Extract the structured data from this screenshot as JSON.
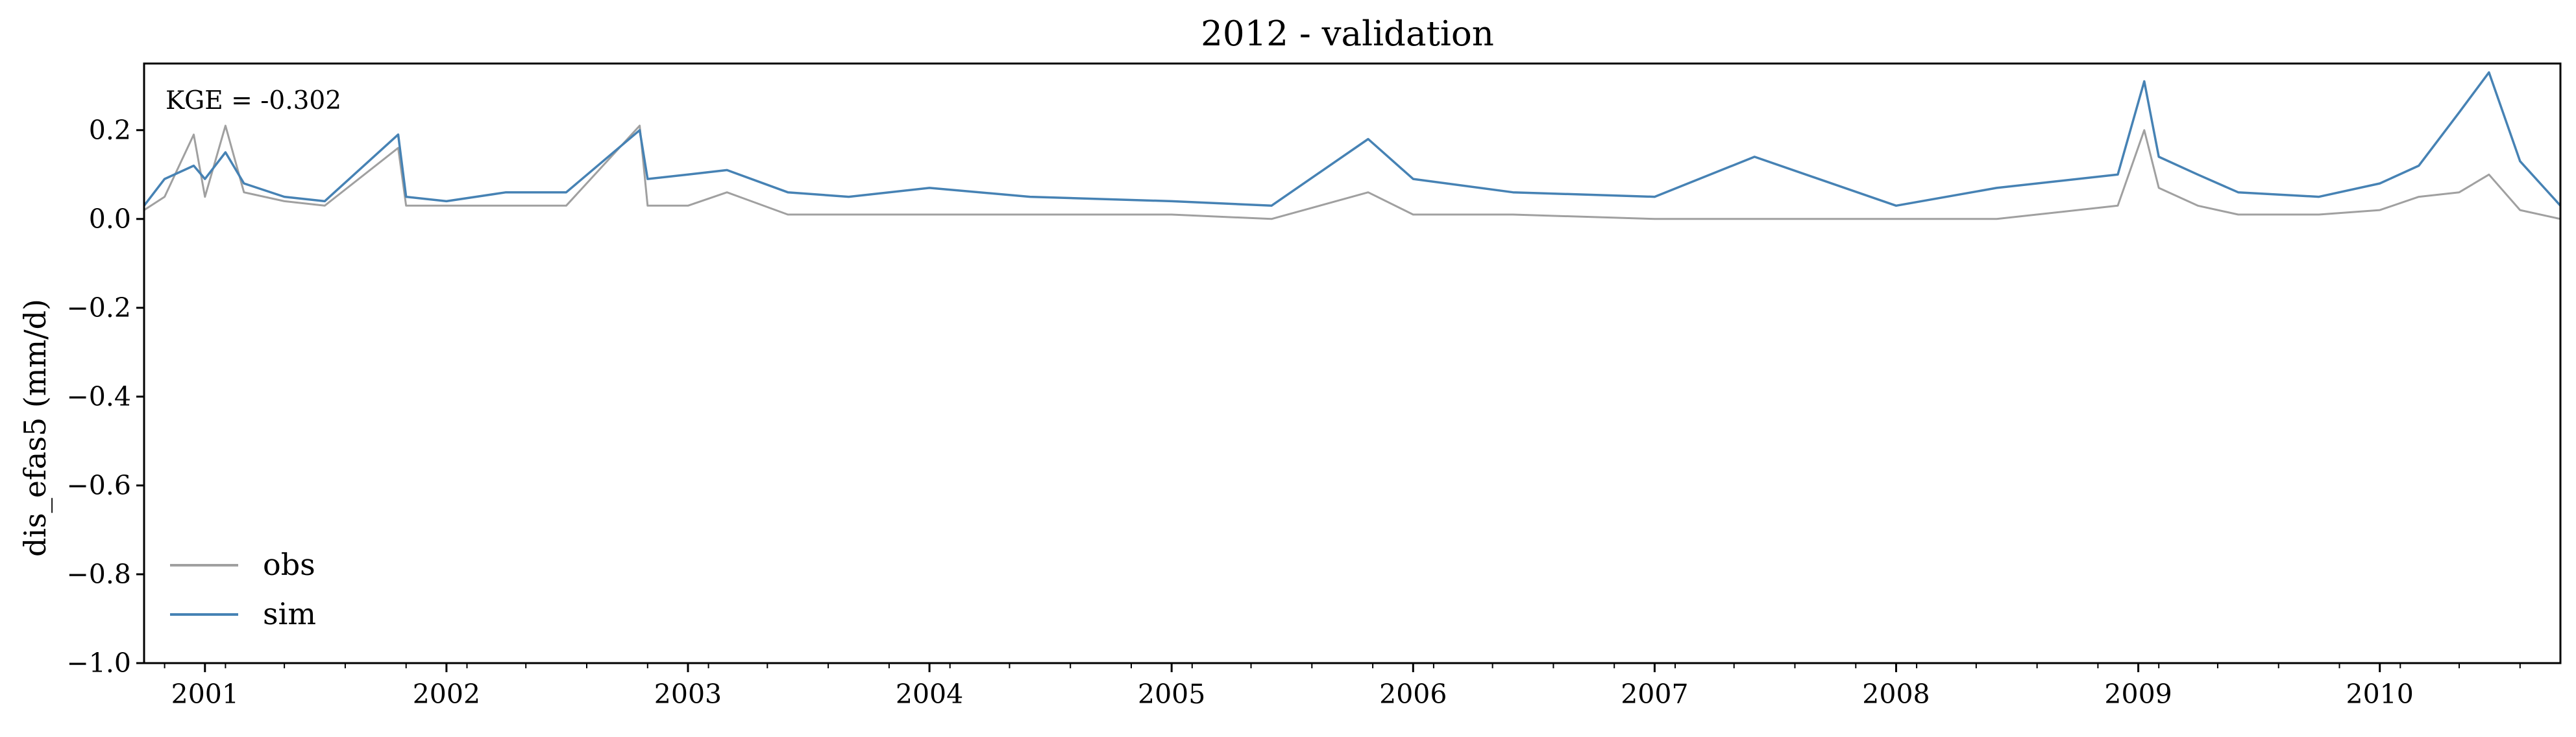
{
  "chart_data": {
    "type": "line",
    "title": "2012 - validation",
    "xlabel": "",
    "ylabel": "dis_efas5 (mm/d)",
    "annotation": "KGE = -0.302",
    "ylim": [
      -1.0,
      0.35
    ],
    "xlim": [
      "2000-10-01",
      "2010-10-01"
    ],
    "yticks": [
      0.2,
      0.0,
      -0.2,
      -0.4,
      -0.6,
      -0.8,
      -1.0
    ],
    "ytick_labels": [
      "0.2",
      "0.0",
      "−0.2",
      "−0.4",
      "−0.6",
      "−0.8",
      "−1.0"
    ],
    "xticks": [
      "2001-01-01",
      "2002-01-01",
      "2003-01-01",
      "2004-01-01",
      "2005-01-01",
      "2006-01-01",
      "2007-01-01",
      "2008-01-01",
      "2009-01-01",
      "2010-01-01"
    ],
    "xtick_labels": [
      "2001",
      "2002",
      "2003",
      "2004",
      "2005",
      "2006",
      "2007",
      "2008",
      "2009",
      "2010"
    ],
    "grid": false,
    "legend_position": "lower-left",
    "series": [
      {
        "name": "obs",
        "color": "#a0a0a0",
        "points": [
          [
            "2000-10-01",
            0.02
          ],
          [
            "2000-11-01",
            0.05
          ],
          [
            "2000-12-15",
            0.19
          ],
          [
            "2001-01-01",
            0.05
          ],
          [
            "2001-02-01",
            0.21
          ],
          [
            "2001-03-01",
            0.06
          ],
          [
            "2001-05-01",
            0.04
          ],
          [
            "2001-07-01",
            0.03
          ],
          [
            "2001-10-20",
            0.16
          ],
          [
            "2001-11-01",
            0.03
          ],
          [
            "2002-01-01",
            0.03
          ],
          [
            "2002-04-01",
            0.03
          ],
          [
            "2002-07-01",
            0.03
          ],
          [
            "2002-10-20",
            0.21
          ],
          [
            "2002-11-01",
            0.03
          ],
          [
            "2003-01-01",
            0.03
          ],
          [
            "2003-03-01",
            0.06
          ],
          [
            "2003-06-01",
            0.01
          ],
          [
            "2003-09-01",
            0.01
          ],
          [
            "2004-01-01",
            0.01
          ],
          [
            "2004-06-01",
            0.01
          ],
          [
            "2005-01-01",
            0.01
          ],
          [
            "2005-06-01",
            0.0
          ],
          [
            "2005-10-25",
            0.06
          ],
          [
            "2006-01-01",
            0.01
          ],
          [
            "2006-06-01",
            0.01
          ],
          [
            "2007-01-01",
            0.0
          ],
          [
            "2007-06-01",
            0.0
          ],
          [
            "2008-01-01",
            0.0
          ],
          [
            "2008-06-01",
            0.0
          ],
          [
            "2008-12-01",
            0.03
          ],
          [
            "2009-01-10",
            0.2
          ],
          [
            "2009-02-01",
            0.07
          ],
          [
            "2009-04-01",
            0.03
          ],
          [
            "2009-06-01",
            0.01
          ],
          [
            "2009-10-01",
            0.01
          ],
          [
            "2010-01-01",
            0.02
          ],
          [
            "2010-03-01",
            0.05
          ],
          [
            "2010-05-01",
            0.06
          ],
          [
            "2010-06-15",
            0.1
          ],
          [
            "2010-08-01",
            0.02
          ],
          [
            "2010-10-01",
            0.0
          ]
        ]
      },
      {
        "name": "sim",
        "color": "#4682b4",
        "points": [
          [
            "2000-10-01",
            0.03
          ],
          [
            "2000-11-01",
            0.09
          ],
          [
            "2000-12-15",
            0.12
          ],
          [
            "2001-01-01",
            0.09
          ],
          [
            "2001-02-01",
            0.15
          ],
          [
            "2001-03-01",
            0.08
          ],
          [
            "2001-05-01",
            0.05
          ],
          [
            "2001-07-01",
            0.04
          ],
          [
            "2001-10-20",
            0.19
          ],
          [
            "2001-11-01",
            0.05
          ],
          [
            "2002-01-01",
            0.04
          ],
          [
            "2002-04-01",
            0.06
          ],
          [
            "2002-07-01",
            0.06
          ],
          [
            "2002-10-20",
            0.2
          ],
          [
            "2002-11-01",
            0.09
          ],
          [
            "2003-01-01",
            0.1
          ],
          [
            "2003-03-01",
            0.11
          ],
          [
            "2003-06-01",
            0.06
          ],
          [
            "2003-09-01",
            0.05
          ],
          [
            "2004-01-01",
            0.07
          ],
          [
            "2004-06-01",
            0.05
          ],
          [
            "2005-01-01",
            0.04
          ],
          [
            "2005-06-01",
            0.03
          ],
          [
            "2005-10-25",
            0.18
          ],
          [
            "2006-01-01",
            0.09
          ],
          [
            "2006-06-01",
            0.06
          ],
          [
            "2007-01-01",
            0.05
          ],
          [
            "2007-06-01",
            0.14
          ],
          [
            "2008-01-01",
            0.03
          ],
          [
            "2008-06-01",
            0.07
          ],
          [
            "2008-12-01",
            0.1
          ],
          [
            "2009-01-10",
            0.31
          ],
          [
            "2009-02-01",
            0.14
          ],
          [
            "2009-04-01",
            0.1
          ],
          [
            "2009-06-01",
            0.06
          ],
          [
            "2009-10-01",
            0.05
          ],
          [
            "2010-01-01",
            0.08
          ],
          [
            "2010-03-01",
            0.12
          ],
          [
            "2010-05-01",
            0.24
          ],
          [
            "2010-06-15",
            0.33
          ],
          [
            "2010-08-01",
            0.13
          ],
          [
            "2010-10-01",
            0.03
          ]
        ]
      }
    ]
  }
}
